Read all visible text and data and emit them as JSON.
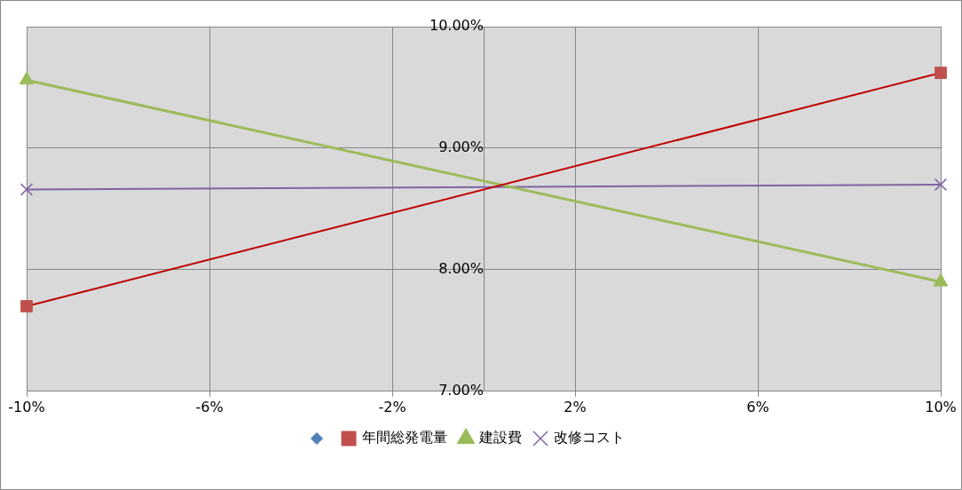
{
  "chart_data": {
    "type": "line",
    "xlim": [
      -10,
      10
    ],
    "xticks": [
      {
        "value": -10,
        "label": "-10%"
      },
      {
        "value": -6,
        "label": "-6%"
      },
      {
        "value": -2,
        "label": "-2%"
      },
      {
        "value": 2,
        "label": "2%"
      },
      {
        "value": 6,
        "label": "6%"
      },
      {
        "value": 10,
        "label": "10%"
      }
    ],
    "ylim": [
      7,
      10
    ],
    "yticks": [
      {
        "value": 7,
        "label": "7.00%"
      },
      {
        "value": 8,
        "label": "8.00%"
      },
      {
        "value": 9,
        "label": "9.00%"
      },
      {
        "value": 10,
        "label": "10.00%"
      }
    ],
    "grid": true,
    "legend": "bottom",
    "x": [
      -10,
      10
    ],
    "series": [
      {
        "name": "年間総発電量",
        "color": "#c00000",
        "marker": "square",
        "values": [
          7.7,
          9.62
        ]
      },
      {
        "name": "建設費",
        "color": "#9bbb59",
        "marker": "triangle",
        "values": [
          9.56,
          7.9
        ]
      },
      {
        "name": "改修コスト",
        "color": "#8064a2",
        "marker": "cross",
        "values": [
          8.66,
          8.7
        ]
      }
    ]
  }
}
